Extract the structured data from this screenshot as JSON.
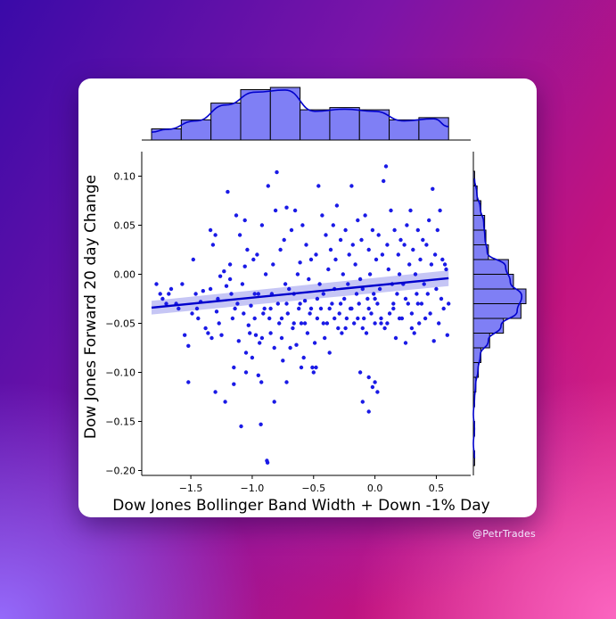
{
  "watermark": "@PetrTrades",
  "colors": {
    "point": "#1a1ae6",
    "regression_line": "#0000cc",
    "confidence_band": "#b3b3f2",
    "histogram_fill": "#7f7ff5",
    "histogram_edge": "#000000",
    "kde": "#0000cc",
    "card_background": "#ffffff"
  },
  "chart_data": {
    "type": "scatter",
    "subtype": "jointplot with regression line, marginal histograms and KDE",
    "title": "",
    "xlabel": "Dow Jones Bollinger Band Width + Down -1% Day",
    "ylabel": "Dow Jones Forward 20 day Change",
    "xlim": [
      -1.9,
      0.78
    ],
    "ylim": [
      -0.205,
      0.125
    ],
    "x_ticks": [
      -1.5,
      -1.0,
      -0.5,
      0.0,
      0.5
    ],
    "x_tick_labels": [
      "−1.5",
      "−1.0",
      "−0.5",
      "0.0",
      "0.5"
    ],
    "y_ticks": [
      -0.2,
      -0.15,
      -0.1,
      -0.05,
      0.0,
      0.05,
      0.1
    ],
    "y_tick_labels": [
      "−0.20",
      "−0.15",
      "−0.10",
      "−0.05",
      "0.00",
      "0.05",
      "0.10"
    ],
    "grid": false,
    "legend": "none",
    "regression": {
      "x": [
        -1.82,
        0.6
      ],
      "y": [
        -0.034,
        -0.004
      ],
      "ci_lower": [
        -0.041,
        -0.012
      ],
      "ci_upper": [
        -0.027,
        0.004
      ]
    },
    "marginal_x_histogram": {
      "bin_edges": [
        -1.82,
        -1.578,
        -1.336,
        -1.094,
        -0.852,
        -0.61,
        -0.368,
        -0.126,
        0.116,
        0.358,
        0.6
      ],
      "counts": [
        10,
        18,
        33,
        45,
        47,
        27,
        29,
        27,
        18,
        20
      ]
    },
    "marginal_y_histogram": {
      "bin_edges": [
        -0.195,
        -0.18,
        -0.165,
        -0.15,
        -0.135,
        -0.12,
        -0.105,
        -0.09,
        -0.075,
        -0.06,
        -0.045,
        -0.03,
        -0.015,
        0.0,
        0.015,
        0.03,
        0.045,
        0.06,
        0.075,
        0.09,
        0.105
      ],
      "counts": [
        1,
        0,
        1,
        0,
        1,
        2,
        4,
        6,
        13,
        24,
        38,
        42,
        32,
        28,
        12,
        10,
        9,
        6,
        3,
        1
      ]
    },
    "points": [
      [
        -1.78,
        -0.01
      ],
      [
        -1.75,
        -0.02
      ],
      [
        -1.73,
        -0.025
      ],
      [
        -1.7,
        -0.03
      ],
      [
        -1.68,
        -0.02
      ],
      [
        -1.66,
        -0.015
      ],
      [
        -1.62,
        -0.03
      ],
      [
        -1.6,
        -0.035
      ],
      [
        -1.57,
        -0.01
      ],
      [
        -1.55,
        -0.062
      ],
      [
        -1.52,
        -0.073
      ],
      [
        -1.52,
        -0.11
      ],
      [
        -1.49,
        -0.04
      ],
      [
        -1.46,
        -0.02
      ],
      [
        -1.44,
        -0.045
      ],
      [
        -1.42,
        -0.028
      ],
      [
        -1.4,
        -0.017
      ],
      [
        -1.38,
        -0.055
      ],
      [
        -1.36,
        -0.06
      ],
      [
        -1.34,
        -0.015
      ],
      [
        -1.33,
        -0.065
      ],
      [
        -1.32,
        0.03
      ],
      [
        -1.3,
        0.04
      ],
      [
        -1.29,
        -0.038
      ],
      [
        -1.27,
        -0.05
      ],
      [
        -1.26,
        -0.002
      ],
      [
        -1.25,
        -0.062
      ],
      [
        -1.23,
        0.003
      ],
      [
        -1.21,
        -0.012
      ],
      [
        -1.2,
        0.084
      ],
      [
        -1.18,
        0.01
      ],
      [
        -1.17,
        -0.02
      ],
      [
        -1.16,
        -0.045
      ],
      [
        -1.15,
        -0.112
      ],
      [
        -1.13,
        0.06
      ],
      [
        -1.12,
        -0.03
      ],
      [
        -1.11,
        -0.068
      ],
      [
        -1.1,
        0.04
      ],
      [
        -1.09,
        -0.155
      ],
      [
        -1.08,
        -0.01
      ],
      [
        -1.07,
        -0.04
      ],
      [
        -1.06,
        0.055
      ],
      [
        -1.05,
        -0.08
      ],
      [
        -1.04,
        0.025
      ],
      [
        -1.03,
        -0.052
      ],
      [
        -1.02,
        -0.06
      ],
      [
        -1.01,
        -0.032
      ],
      [
        -1.0,
        -0.085
      ],
      [
        -0.99,
        0.015
      ],
      [
        -0.98,
        -0.045
      ],
      [
        -0.97,
        -0.062
      ],
      [
        -0.96,
        0.02
      ],
      [
        -0.95,
        -0.02
      ],
      [
        -0.94,
        -0.07
      ],
      [
        -0.93,
        -0.153
      ],
      [
        -0.925,
        -0.11
      ],
      [
        -0.92,
        0.05
      ],
      [
        -0.91,
        -0.04
      ],
      [
        -0.9,
        -0.035
      ],
      [
        -0.89,
        0.0
      ],
      [
        -0.88,
        -0.19
      ],
      [
        -0.875,
        -0.192
      ],
      [
        -0.87,
        0.09
      ],
      [
        -0.86,
        -0.045
      ],
      [
        -0.85,
        -0.06
      ],
      [
        -0.84,
        -0.02
      ],
      [
        -0.83,
        0.01
      ],
      [
        -0.82,
        -0.075
      ],
      [
        -0.81,
        0.065
      ],
      [
        -0.8,
        0.104
      ],
      [
        -0.79,
        -0.03
      ],
      [
        -0.78,
        -0.05
      ],
      [
        -0.77,
        0.025
      ],
      [
        -0.76,
        -0.065
      ],
      [
        -0.75,
        -0.088
      ],
      [
        -0.74,
        0.035
      ],
      [
        -0.73,
        -0.01
      ],
      [
        -0.72,
        0.068
      ],
      [
        -0.71,
        -0.04
      ],
      [
        -0.7,
        -0.015
      ],
      [
        -0.69,
        -0.075
      ],
      [
        -0.68,
        0.045
      ],
      [
        -0.67,
        -0.055
      ],
      [
        -0.66,
        -0.02
      ],
      [
        -0.65,
        0.065
      ],
      [
        -0.64,
        -0.072
      ],
      [
        -0.63,
        0.0
      ],
      [
        -0.62,
        -0.035
      ],
      [
        -0.61,
        0.012
      ],
      [
        -0.6,
        -0.05
      ],
      [
        -0.59,
        0.05
      ],
      [
        -0.58,
        -0.085
      ],
      [
        -0.57,
        -0.027
      ],
      [
        -0.56,
        0.03
      ],
      [
        -0.55,
        -0.06
      ],
      [
        -0.54,
        -0.005
      ],
      [
        -0.53,
        -0.04
      ],
      [
        -0.52,
        0.015
      ],
      [
        -0.51,
        -0.095
      ],
      [
        -0.5,
        -0.1
      ],
      [
        -0.49,
        -0.07
      ],
      [
        -0.48,
        0.02
      ],
      [
        -0.47,
        -0.045
      ],
      [
        -0.46,
        0.09
      ],
      [
        -0.45,
        -0.01
      ],
      [
        -0.44,
        -0.035
      ],
      [
        -0.43,
        0.06
      ],
      [
        -0.42,
        -0.02
      ],
      [
        -0.41,
        -0.065
      ],
      [
        -0.4,
        0.04
      ],
      [
        -0.39,
        -0.05
      ],
      [
        -0.38,
        0.005
      ],
      [
        -0.37,
        -0.08
      ],
      [
        -0.36,
        0.025
      ],
      [
        -0.35,
        -0.03
      ],
      [
        -0.34,
        0.05
      ],
      [
        -0.33,
        -0.015
      ],
      [
        -0.32,
        0.015
      ],
      [
        -0.31,
        0.07
      ],
      [
        -0.3,
        -0.055
      ],
      [
        -0.29,
        -0.04
      ],
      [
        -0.28,
        0.035
      ],
      [
        -0.27,
        -0.06
      ],
      [
        -0.26,
        0.0
      ],
      [
        -0.25,
        -0.025
      ],
      [
        -0.24,
        0.045
      ],
      [
        -0.23,
        -0.045
      ],
      [
        -0.22,
        -0.01
      ],
      [
        -0.21,
        0.02
      ],
      [
        -0.2,
        -0.035
      ],
      [
        -0.19,
        0.09
      ],
      [
        -0.18,
        0.03
      ],
      [
        -0.17,
        -0.05
      ],
      [
        -0.16,
        0.01
      ],
      [
        -0.15,
        -0.02
      ],
      [
        -0.14,
        0.055
      ],
      [
        -0.13,
        -0.03
      ],
      [
        -0.12,
        -0.005
      ],
      [
        -0.11,
        0.035
      ],
      [
        -0.1,
        -0.015
      ],
      [
        -0.09,
        -0.045
      ],
      [
        -0.08,
        0.06
      ],
      [
        -0.07,
        -0.06
      ],
      [
        -0.06,
        -0.025
      ],
      [
        -0.05,
        0.025
      ],
      [
        -0.04,
        0.0
      ],
      [
        -0.03,
        -0.04
      ],
      [
        -0.02,
        0.045
      ],
      [
        -0.01,
        -0.02
      ],
      [
        0.0,
        -0.05
      ],
      [
        0.01,
        0.015
      ],
      [
        0.02,
        -0.03
      ],
      [
        0.03,
        0.04
      ],
      [
        0.04,
        -0.015
      ],
      [
        0.05,
        -0.05
      ],
      [
        0.06,
        0.02
      ],
      [
        0.07,
        0.095
      ],
      [
        0.08,
        -0.055
      ],
      [
        0.09,
        0.11
      ],
      [
        0.1,
        0.03
      ],
      [
        0.11,
        0.005
      ],
      [
        0.12,
        -0.04
      ],
      [
        0.13,
        0.065
      ],
      [
        0.14,
        -0.01
      ],
      [
        0.15,
        -0.035
      ],
      [
        0.16,
        0.045
      ],
      [
        0.17,
        -0.065
      ],
      [
        0.18,
        -0.02
      ],
      [
        0.19,
        0.02
      ],
      [
        0.2,
        0.0
      ],
      [
        0.21,
        0.035
      ],
      [
        0.22,
        -0.045
      ],
      [
        0.23,
        -0.01
      ],
      [
        0.24,
        0.03
      ],
      [
        0.25,
        -0.07
      ],
      [
        0.26,
        0.05
      ],
      [
        0.27,
        -0.03
      ],
      [
        0.28,
        0.01
      ],
      [
        0.29,
        0.065
      ],
      [
        0.3,
        -0.04
      ],
      [
        0.31,
        0.025
      ],
      [
        0.32,
        -0.06
      ],
      [
        0.33,
        0.0
      ],
      [
        0.34,
        -0.02
      ],
      [
        0.35,
        0.045
      ],
      [
        0.36,
        -0.05
      ],
      [
        0.37,
        0.015
      ],
      [
        0.38,
        -0.03
      ],
      [
        0.39,
        0.035
      ],
      [
        0.4,
        -0.01
      ],
      [
        0.41,
        -0.045
      ],
      [
        0.42,
        0.03
      ],
      [
        0.43,
        -0.02
      ],
      [
        0.44,
        0.055
      ],
      [
        0.45,
        -0.04
      ],
      [
        0.46,
        0.01
      ],
      [
        0.47,
        0.087
      ],
      [
        0.48,
        -0.068
      ],
      [
        0.49,
        0.02
      ],
      [
        0.5,
        -0.015
      ],
      [
        0.51,
        0.045
      ],
      [
        0.52,
        -0.05
      ],
      [
        0.53,
        0.065
      ],
      [
        0.54,
        -0.025
      ],
      [
        0.55,
        0.015
      ],
      [
        0.56,
        -0.035
      ],
      [
        0.57,
        0.01
      ],
      [
        0.58,
        0.005
      ],
      [
        0.59,
        -0.062
      ],
      [
        0.6,
        -0.03
      ],
      [
        -1.45,
        -0.035
      ],
      [
        -1.28,
        -0.025
      ],
      [
        -1.14,
        -0.035
      ],
      [
        -0.98,
        -0.02
      ],
      [
        -0.92,
        -0.065
      ],
      [
        -0.85,
        -0.035
      ],
      [
        -0.76,
        -0.045
      ],
      [
        -0.72,
        -0.03
      ],
      [
        -0.66,
        -0.05
      ],
      [
        -0.61,
        -0.03
      ],
      [
        -0.57,
        -0.05
      ],
      [
        -0.52,
        -0.035
      ],
      [
        -0.47,
        -0.025
      ],
      [
        -0.42,
        -0.05
      ],
      [
        -0.37,
        -0.035
      ],
      [
        -0.33,
        -0.045
      ],
      [
        -0.28,
        -0.03
      ],
      [
        -0.24,
        -0.055
      ],
      [
        -0.19,
        -0.035
      ],
      [
        -0.14,
        -0.045
      ],
      [
        -0.1,
        -0.055
      ],
      [
        -0.05,
        -0.035
      ],
      [
        0.0,
        -0.025
      ],
      [
        0.05,
        -0.045
      ],
      [
        0.1,
        -0.05
      ],
      [
        0.15,
        -0.03
      ],
      [
        0.2,
        -0.045
      ],
      [
        0.25,
        -0.025
      ],
      [
        0.3,
        -0.055
      ],
      [
        0.35,
        -0.03
      ],
      [
        -1.15,
        -0.095
      ],
      [
        -1.05,
        -0.1
      ],
      [
        -0.95,
        -0.103
      ],
      [
        -0.82,
        -0.13
      ],
      [
        -0.6,
        -0.095
      ],
      [
        -0.48,
        -0.095
      ],
      [
        -0.1,
        -0.13
      ],
      [
        -0.05,
        -0.105
      ],
      [
        0.0,
        -0.11
      ],
      [
        0.02,
        -0.12
      ],
      [
        -0.05,
        -0.14
      ],
      [
        -0.02,
        -0.115
      ],
      [
        -1.3,
        -0.12
      ],
      [
        -1.22,
        -0.13
      ],
      [
        -0.72,
        -0.11
      ],
      [
        -0.12,
        -0.1
      ],
      [
        -1.48,
        0.015
      ],
      [
        -1.34,
        0.045
      ],
      [
        -1.18,
        -0.005
      ],
      [
        -1.06,
        0.008
      ]
    ]
  }
}
